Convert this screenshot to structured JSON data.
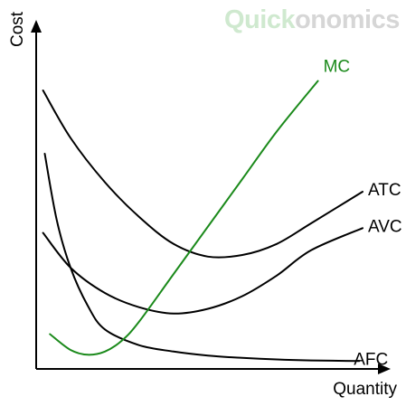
{
  "logo": {
    "part1": "Quick",
    "part2": "onomics",
    "colors": {
      "part1": "#cfe9cf",
      "part2": "#d6d6d6"
    }
  },
  "chart_data": {
    "type": "line",
    "xlabel": "Quantity",
    "ylabel": "Cost",
    "xlim": [
      0,
      10
    ],
    "ylim": [
      0,
      10
    ],
    "ticks": false,
    "grid": false,
    "legend": "none",
    "axis_arrows": true,
    "series": [
      {
        "name": "ATC",
        "color": "#000000",
        "x": [
          0.2,
          1,
          2,
          3,
          4,
          5,
          6,
          7,
          8,
          9.5
        ],
        "y": [
          8.8,
          7.3,
          5.9,
          4.8,
          3.95,
          3.55,
          3.6,
          3.95,
          4.6,
          5.6
        ]
      },
      {
        "name": "AVC",
        "color": "#000000",
        "x": [
          0.2,
          1,
          2,
          3,
          4,
          5,
          6,
          7,
          8,
          9.5
        ],
        "y": [
          4.3,
          3.2,
          2.4,
          1.95,
          1.75,
          1.9,
          2.3,
          2.95,
          3.75,
          4.45
        ]
      },
      {
        "name": "AFC",
        "color": "#000000",
        "x": [
          0.25,
          0.6,
          1,
          1.5,
          2,
          3,
          4,
          5,
          6,
          7,
          8,
          9.4
        ],
        "y": [
          6.8,
          4.7,
          3.2,
          2.0,
          1.25,
          0.75,
          0.55,
          0.42,
          0.35,
          0.3,
          0.27,
          0.25
        ]
      },
      {
        "name": "MC",
        "color": "#1b8a1b",
        "x": [
          0.4,
          1,
          1.5,
          2,
          2.5,
          3,
          4,
          5,
          6,
          7,
          8.2
        ],
        "y": [
          1.1,
          0.6,
          0.45,
          0.55,
          0.9,
          1.5,
          3.0,
          4.5,
          6.0,
          7.5,
          9.1
        ]
      }
    ]
  }
}
